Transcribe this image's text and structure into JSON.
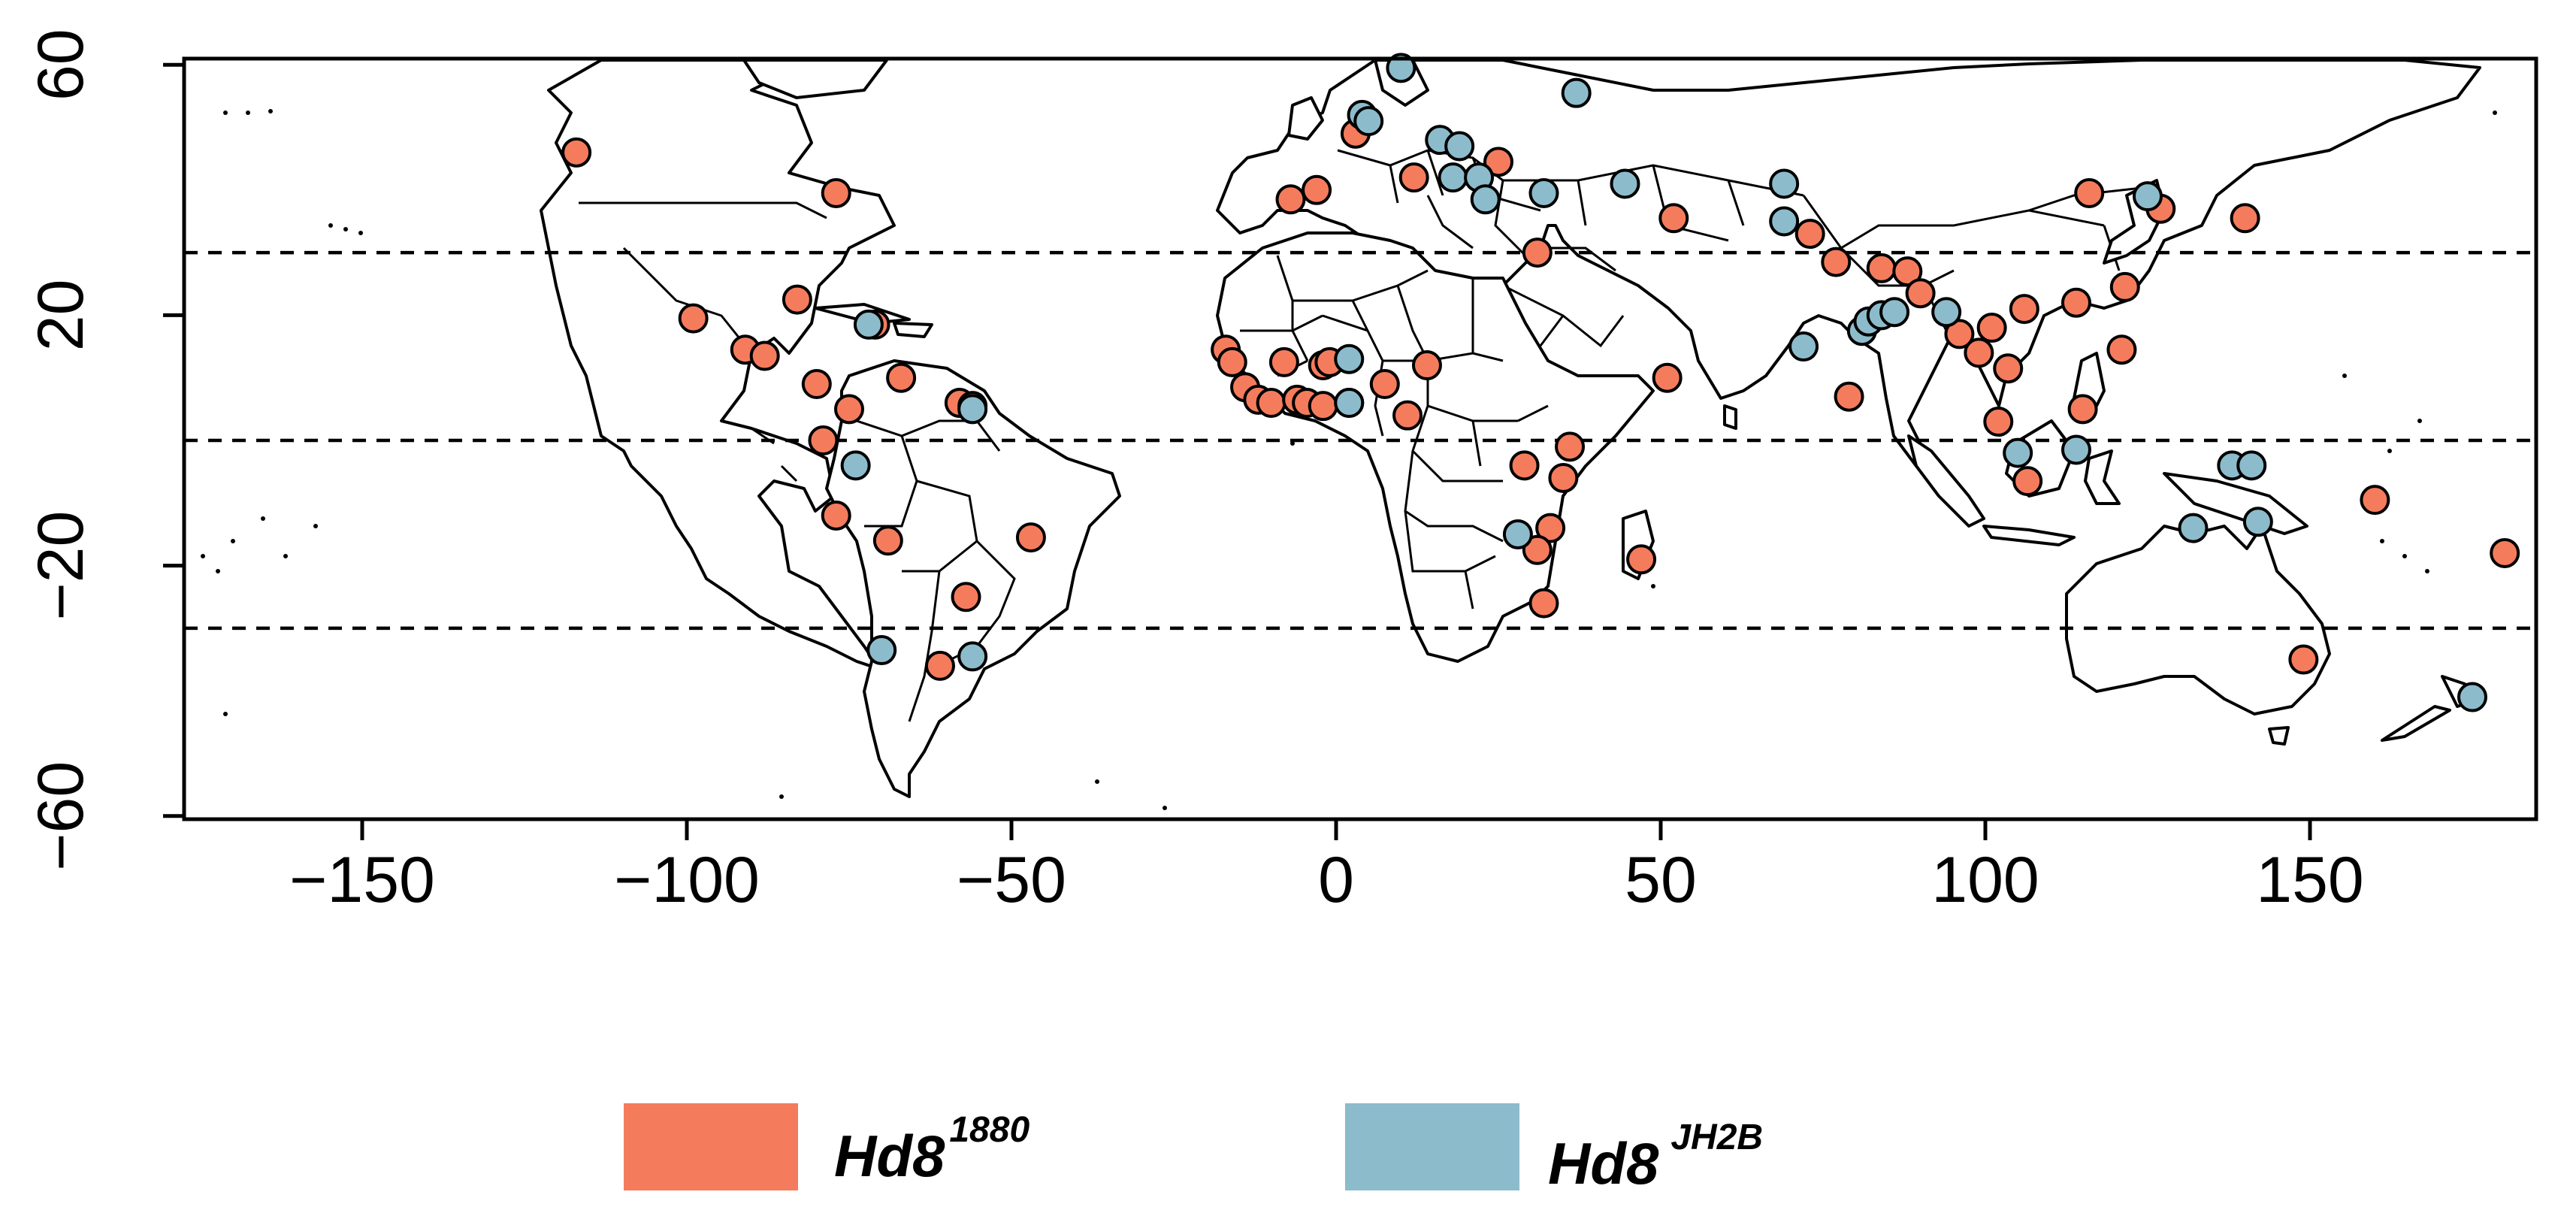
{
  "chart_data": {
    "type": "scatter",
    "map": "world",
    "xlim": [
      -180,
      190
    ],
    "ylim": [
      -60,
      60
    ],
    "x_ticks": [
      -150,
      -100,
      -50,
      0,
      50,
      100,
      150
    ],
    "y_ticks": [
      60,
      20,
      -20,
      -60
    ],
    "reference_latitudes": [
      30,
      0,
      -30
    ],
    "legend_placement": "bottom",
    "series": [
      {
        "name": "Hd8",
        "superscript": "1880",
        "color": "#f47c5c",
        "points": [
          [
            -117,
            46
          ],
          [
            -77,
            39.5
          ],
          [
            -99,
            19.5
          ],
          [
            -83,
            22.5
          ],
          [
            -71,
            18.5
          ],
          [
            -91,
            14.5
          ],
          [
            -88,
            13.5
          ],
          [
            -80,
            9
          ],
          [
            -75,
            5
          ],
          [
            -67,
            10
          ],
          [
            -58,
            6
          ],
          [
            -56,
            5.5
          ],
          [
            -79,
            0
          ],
          [
            -77,
            -12
          ],
          [
            -69,
            -16
          ],
          [
            -47,
            -15.5
          ],
          [
            -57,
            -25
          ],
          [
            -61,
            -36
          ],
          [
            -17,
            14.5
          ],
          [
            -16,
            12.5
          ],
          [
            -14,
            8.5
          ],
          [
            -12,
            6.5
          ],
          [
            -10,
            6
          ],
          [
            -6,
            6.5
          ],
          [
            -4.5,
            6
          ],
          [
            -8,
            12.5
          ],
          [
            -2,
            12
          ],
          [
            -1,
            12.5
          ],
          [
            -2,
            5.5
          ],
          [
            2,
            6
          ],
          [
            7.5,
            9
          ],
          [
            11,
            4
          ],
          [
            14,
            12
          ],
          [
            -7,
            38.5
          ],
          [
            -3,
            40
          ],
          [
            3,
            49
          ],
          [
            12,
            42
          ],
          [
            25,
            44.5
          ],
          [
            31,
            30
          ],
          [
            52,
            35.5
          ],
          [
            51,
            10
          ],
          [
            29,
            -4
          ],
          [
            36,
            -1
          ],
          [
            35,
            -6
          ],
          [
            33,
            -14
          ],
          [
            31,
            -17.5
          ],
          [
            32,
            -26
          ],
          [
            47,
            -19
          ],
          [
            73,
            33
          ],
          [
            77,
            28.5
          ],
          [
            84,
            27.5
          ],
          [
            88,
            27
          ],
          [
            90,
            23.5
          ],
          [
            79,
            7
          ],
          [
            96,
            17
          ],
          [
            99,
            14
          ],
          [
            101,
            18
          ],
          [
            102,
            3
          ],
          [
            103.5,
            11.5
          ],
          [
            106,
            21
          ],
          [
            106.5,
            -6.5
          ],
          [
            114,
            22
          ],
          [
            115,
            5
          ],
          [
            116,
            39.5
          ],
          [
            121,
            14.5
          ],
          [
            121.5,
            24.5
          ],
          [
            127,
            37
          ],
          [
            140,
            35.5
          ],
          [
            160,
            -9.5
          ],
          [
            180,
            -18
          ],
          [
            149,
            -35
          ]
        ]
      },
      {
        "name": "Hd8",
        "superscript": "JH2B",
        "color": "#8cbccc",
        "points": [
          [
            -72,
            18.5
          ],
          [
            -56,
            5
          ],
          [
            -74,
            -4
          ],
          [
            -70,
            -33.5
          ],
          [
            -56,
            -34.5
          ],
          [
            2,
            13
          ],
          [
            2,
            6
          ],
          [
            4,
            52
          ],
          [
            5,
            51
          ],
          [
            10,
            59.5
          ],
          [
            16,
            48
          ],
          [
            19,
            47
          ],
          [
            18,
            42
          ],
          [
            22,
            42
          ],
          [
            23,
            38.5
          ],
          [
            32,
            39.5
          ],
          [
            37,
            55.5
          ],
          [
            44.5,
            41
          ],
          [
            69,
            41
          ],
          [
            69,
            35
          ],
          [
            28,
            -15
          ],
          [
            72,
            15
          ],
          [
            81,
            17.5
          ],
          [
            82,
            19
          ],
          [
            84,
            20
          ],
          [
            86,
            20.5
          ],
          [
            94,
            20.5
          ],
          [
            105,
            -2
          ],
          [
            114,
            -1.5
          ],
          [
            125,
            39
          ],
          [
            132,
            -14
          ],
          [
            138,
            -4
          ],
          [
            141,
            -4
          ],
          [
            142,
            -13
          ],
          [
            175,
            -41
          ]
        ]
      }
    ]
  }
}
